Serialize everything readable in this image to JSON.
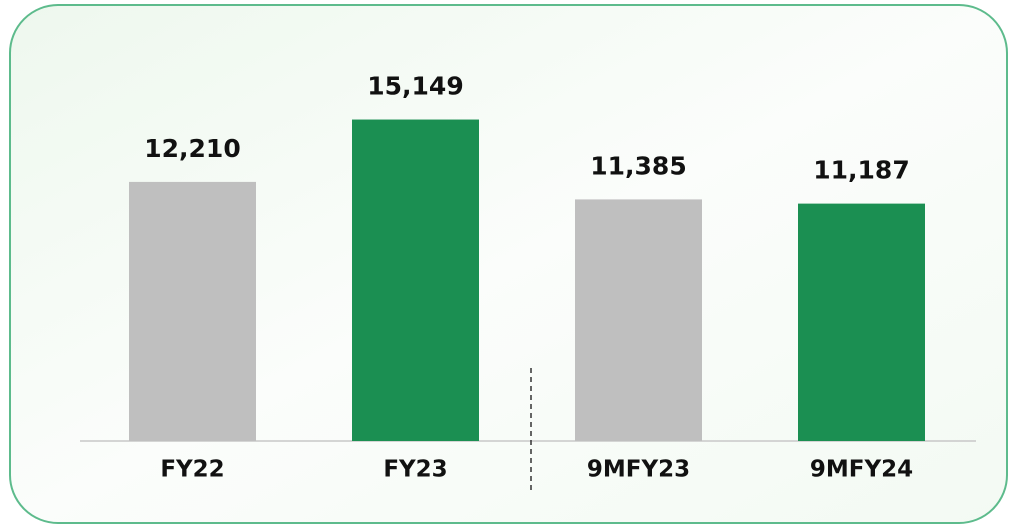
{
  "chart_data": {
    "type": "bar",
    "categories": [
      "FY22",
      "FY23",
      "9MFY23",
      "9MFY24"
    ],
    "values": [
      12210,
      15149,
      11385,
      11187
    ],
    "value_labels": [
      "12,210",
      "15,149",
      "11,385",
      "11,187"
    ],
    "colors": [
      "#bfbfbf",
      "#1b8f52",
      "#bfbfbf",
      "#1b8f52"
    ]
  }
}
